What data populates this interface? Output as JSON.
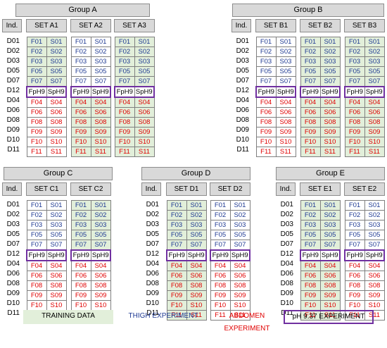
{
  "ind_label": "Ind.",
  "row_labels": [
    "D01",
    "D02",
    "D03",
    "D05",
    "D07",
    "D12",
    "D04",
    "D06",
    "D08",
    "D09",
    "D10",
    "D11"
  ],
  "cells": [
    [
      "F01",
      "S01"
    ],
    [
      "F02",
      "S02"
    ],
    [
      "F03",
      "S03"
    ],
    [
      "F05",
      "S05"
    ],
    [
      "F07",
      "S07"
    ],
    [
      "FpH9",
      "SpH9"
    ],
    [
      "F04",
      "S04"
    ],
    [
      "F06",
      "S06"
    ],
    [
      "F08",
      "S08"
    ],
    [
      "F09",
      "S09"
    ],
    [
      "F10",
      "S10"
    ],
    [
      "F11",
      "S11"
    ]
  ],
  "groups": [
    {
      "title": "Group A",
      "sets": [
        {
          "name": "SET A1",
          "train": [
            true,
            true,
            true,
            true,
            true,
            false,
            false,
            false,
            false,
            false,
            false,
            false
          ]
        },
        {
          "name": "SET A2",
          "train": [
            false,
            false,
            false,
            false,
            false,
            false,
            true,
            true,
            true,
            true,
            true,
            true
          ]
        },
        {
          "name": "SET A3",
          "train": [
            true,
            true,
            true,
            true,
            true,
            false,
            true,
            true,
            true,
            true,
            true,
            true
          ]
        }
      ]
    },
    {
      "title": "Group B",
      "sets": [
        {
          "name": "SET B1",
          "train": [
            false,
            false,
            false,
            false,
            false,
            false,
            false,
            false,
            false,
            false,
            false,
            false
          ]
        },
        {
          "name": "SET B2",
          "train": [
            true,
            true,
            true,
            true,
            true,
            false,
            true,
            true,
            true,
            true,
            true,
            true
          ]
        },
        {
          "name": "SET B3",
          "train": [
            true,
            true,
            true,
            true,
            true,
            false,
            true,
            true,
            true,
            true,
            true,
            true
          ]
        }
      ]
    },
    {
      "title": "Group C",
      "sets": [
        {
          "name": "SET C1",
          "train": [
            false,
            false,
            false,
            false,
            false,
            false,
            false,
            false,
            false,
            false,
            false,
            false
          ]
        },
        {
          "name": "SET C2",
          "train": [
            true,
            true,
            true,
            true,
            true,
            false,
            false,
            false,
            false,
            false,
            false,
            false
          ]
        }
      ]
    },
    {
      "title": "Group D",
      "sets": [
        {
          "name": "SET D1",
          "train": [
            true,
            true,
            true,
            true,
            true,
            false,
            true,
            true,
            true,
            true,
            true,
            true
          ]
        },
        {
          "name": "SET D2",
          "train": [
            false,
            false,
            false,
            false,
            false,
            false,
            false,
            false,
            false,
            false,
            false,
            false
          ]
        }
      ]
    },
    {
      "title": "Group E",
      "sets": [
        {
          "name": "SET E1",
          "train": [
            true,
            true,
            true,
            true,
            true,
            false,
            true,
            true,
            true,
            true,
            true,
            true
          ]
        },
        {
          "name": "SET E2",
          "train": [
            false,
            false,
            false,
            false,
            false,
            false,
            false,
            false,
            false,
            false,
            false,
            false
          ]
        }
      ]
    }
  ],
  "legend": {
    "training": "TRAINING DATA",
    "thigh": "THIGH EXPERIMENT",
    "abdomen": "ABDOMEN EXPERIMENT",
    "ph": "pH 9.37 EXPERIMENT"
  },
  "colors": {
    "training_fill": "#e2efda",
    "thigh_text": "#1f3a93",
    "abdomen_text": "#e00000",
    "ph_border": "#7030a0"
  }
}
